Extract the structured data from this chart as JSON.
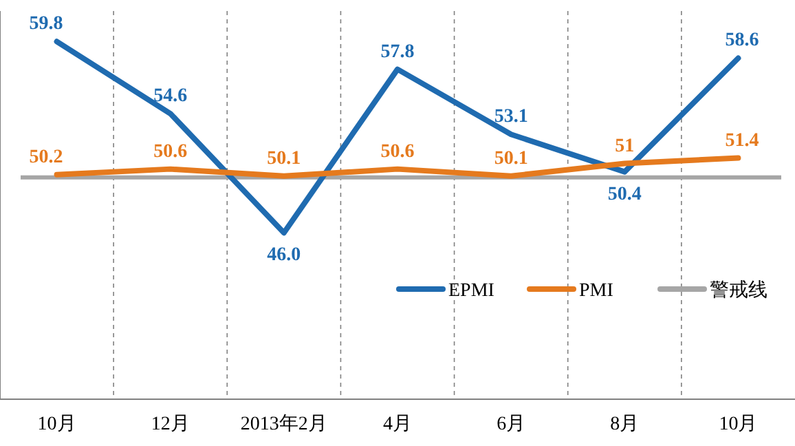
{
  "chart_data": {
    "type": "line",
    "categories": [
      "10月",
      "12月",
      "2013年2月",
      "4月",
      "6月",
      "8月",
      "10月"
    ],
    "series": [
      {
        "name": "EPMI",
        "color": "#1f6bb0",
        "values": [
          59.8,
          54.6,
          46.0,
          57.8,
          53.1,
          50.4,
          58.6
        ],
        "value_labels": [
          "59.8",
          "54.6",
          "46.0",
          "57.8",
          "53.1",
          "50.4",
          "58.6"
        ]
      },
      {
        "name": "PMI",
        "color": "#e57a1e",
        "values": [
          50.2,
          50.6,
          50.1,
          50.6,
          50.1,
          51,
          51.4
        ]
      }
    ],
    "ref_lines": [
      {
        "axis": "y",
        "value": 50,
        "label": "警戒线",
        "color": "#a6a6a6"
      }
    ],
    "ylim": [
      34,
      62
    ],
    "tick_labels": "x",
    "data_labels": true,
    "grid": "x",
    "legend": "bottom right",
    "marker": "none",
    "line_style": "solid"
  }
}
